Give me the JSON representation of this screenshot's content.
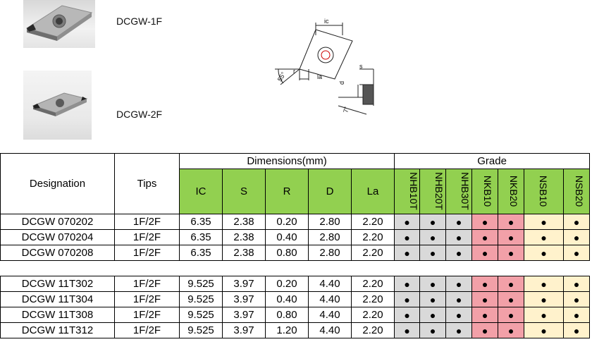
{
  "products": [
    {
      "label": "DCGW-1F",
      "image": "insert-photo-1f"
    },
    {
      "label": "DCGW-2F",
      "image": "insert-photo-2f"
    }
  ],
  "drawing_labels": {
    "ic": "ic",
    "s": "s",
    "la": "la",
    "d": "d",
    "angle": "55°",
    "r": "r",
    "relief": "7°"
  },
  "table": {
    "designation_header": "Designation",
    "tips_header": "Tips",
    "dimensions_header": "Dimensions(mm)",
    "dimension_columns": [
      "IC",
      "S",
      "R",
      "D",
      "La"
    ],
    "grade_header": "Grade",
    "grade_columns": [
      "NHB10T",
      "NHB20T",
      "NHB30T",
      "NKB10",
      "NKB20",
      "NSB10",
      "NSB20"
    ],
    "dot": "●",
    "group1": [
      {
        "designation": "DCGW 070202",
        "tips": "1F/2F",
        "ic": "6.35",
        "s": "2.38",
        "r": "0.20",
        "d": "2.80",
        "la": "2.20"
      },
      {
        "designation": "DCGW 070204",
        "tips": "1F/2F",
        "ic": "6.35",
        "s": "2.38",
        "r": "0.40",
        "d": "2.80",
        "la": "2.20"
      },
      {
        "designation": "DCGW 070208",
        "tips": "1F/2F",
        "ic": "6.35",
        "s": "2.38",
        "r": "0.80",
        "d": "2.80",
        "la": "2.20"
      }
    ],
    "group2": [
      {
        "designation": "DCGW 11T302",
        "tips": "1F/2F",
        "ic": "9.525",
        "s": "3.97",
        "r": "0.20",
        "d": "4.40",
        "la": "2.20"
      },
      {
        "designation": "DCGW 11T304",
        "tips": "1F/2F",
        "ic": "9.525",
        "s": "3.97",
        "r": "0.40",
        "d": "4.40",
        "la": "2.20"
      },
      {
        "designation": "DCGW 11T308",
        "tips": "1F/2F",
        "ic": "9.525",
        "s": "3.97",
        "r": "0.80",
        "d": "4.40",
        "la": "2.20"
      },
      {
        "designation": "DCGW 11T312",
        "tips": "1F/2F",
        "ic": "9.525",
        "s": "3.97",
        "r": "1.20",
        "d": "4.40",
        "la": "2.20"
      }
    ]
  },
  "colors": {
    "header_green": "#92d050",
    "grade_gray": "#d9d9d9",
    "grade_pink": "#f2a0a8",
    "grade_yellow": "#fff2cc"
  }
}
